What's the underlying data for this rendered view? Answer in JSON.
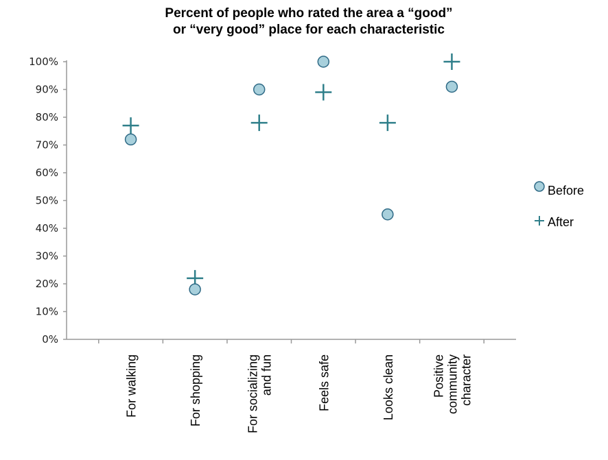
{
  "chart_data": {
    "type": "scatter",
    "title_lines": [
      "Percent of people who rated the area a “good”",
      "or “very good” place for each characteristic"
    ],
    "categories": [
      [
        "For walking"
      ],
      [
        "For shopping"
      ],
      [
        "For socializing",
        "and fun"
      ],
      [
        "Feels safe"
      ],
      [
        "Looks clean"
      ],
      [
        "Positive",
        "community",
        "character"
      ]
    ],
    "y_ticks": [
      "0%",
      "10%",
      "20%",
      "30%",
      "40%",
      "50%",
      "60%",
      "70%",
      "80%",
      "90%",
      "100%"
    ],
    "ylim": [
      0,
      100
    ],
    "series": [
      {
        "name": "Before",
        "marker": "circle",
        "values": [
          72,
          18,
          90,
          100,
          45,
          91
        ]
      },
      {
        "name": "After",
        "marker": "plus",
        "values": [
          77,
          22,
          78,
          89,
          78,
          100
        ]
      }
    ],
    "colors": {
      "before_fill": "#a8d0dc",
      "before_stroke": "#2f6a86",
      "after": "#2f7f8a",
      "axis": "#999999"
    },
    "legend_position": "right"
  }
}
